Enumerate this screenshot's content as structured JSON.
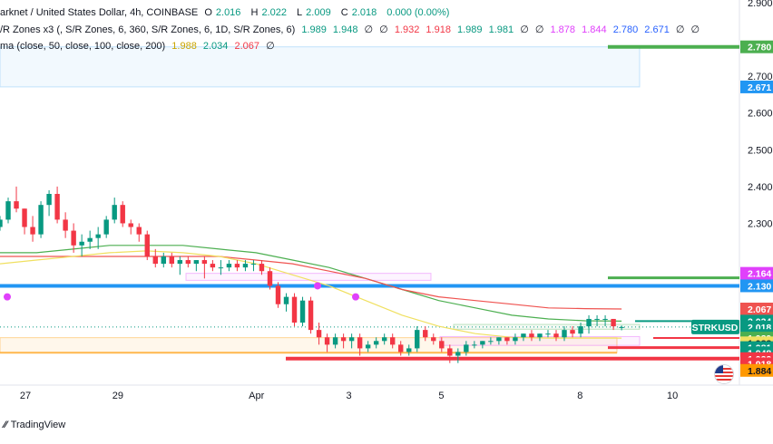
{
  "header": {
    "symbol_line": "arknet / United States Dollar, 4h, COINBASE",
    "ohlc": {
      "o_label": "O",
      "o": "2.016",
      "h_label": "H",
      "h": "2.022",
      "l_label": "L",
      "l": "2.009",
      "c_label": "C",
      "c": "2.018",
      "change": "0.000 (0.00%)"
    },
    "indicator1": {
      "name": "/R Zones x3 (, S/R Zones, 6, 360, S/R Zones, 6, 1D, S/R Zones, 6)",
      "values": [
        "1.989",
        "1.948",
        "∅",
        "∅",
        "1.932",
        "1.918",
        "1.989",
        "1.981",
        "∅",
        "∅",
        "1.878",
        "1.844",
        "2.780",
        "2.671",
        "∅",
        "∅"
      ]
    },
    "indicator2": {
      "name": "ma (close, 50, close, 100, close, 200)",
      "values": [
        "1.988",
        "2.034",
        "2.067",
        "∅"
      ]
    }
  },
  "footer": {
    "brand": "TradingView"
  },
  "colors": {
    "up": "#089981",
    "down": "#f23645",
    "blue": "#2196f3",
    "pink": "#e040fb",
    "orange": "#ff9800",
    "green_ma": "#4caf50",
    "red_ma": "#ef5350",
    "yellow_ma": "#f0e060"
  },
  "chart_data": {
    "type": "candlestick",
    "symbol": "STRKUSD",
    "interval": "4h",
    "exchange": "COINBASE",
    "ylim": [
      1.86,
      2.9
    ],
    "yticks": [
      "2.900",
      "2.700",
      "2.600",
      "2.500",
      "2.400",
      "2.300"
    ],
    "xticks": [
      {
        "label": "27",
        "day": 0
      },
      {
        "label": "29",
        "day": 2
      },
      {
        "label": "Apr",
        "day": 5
      },
      {
        "label": "3",
        "day": 7
      },
      {
        "label": "5",
        "day": 9
      },
      {
        "label": "8",
        "day": 12
      },
      {
        "label": "10",
        "day": 14
      }
    ],
    "x_start_day": -0.55,
    "x_end_day": 15.45,
    "candles": [
      [
        2.29,
        2.32,
        2.28,
        2.31
      ],
      [
        2.31,
        2.37,
        2.3,
        2.36
      ],
      [
        2.36,
        2.4,
        2.33,
        2.34
      ],
      [
        2.34,
        2.34,
        2.27,
        2.29
      ],
      [
        2.29,
        2.32,
        2.25,
        2.27
      ],
      [
        2.27,
        2.36,
        2.26,
        2.35
      ],
      [
        2.35,
        2.39,
        2.32,
        2.38
      ],
      [
        2.38,
        2.4,
        2.3,
        2.31
      ],
      [
        2.31,
        2.33,
        2.26,
        2.28
      ],
      [
        2.28,
        2.3,
        2.22,
        2.24
      ],
      [
        2.24,
        2.27,
        2.21,
        2.25
      ],
      [
        2.25,
        2.28,
        2.23,
        2.26
      ],
      [
        2.26,
        2.29,
        2.23,
        2.27
      ],
      [
        2.27,
        2.32,
        2.26,
        2.31
      ],
      [
        2.31,
        2.37,
        2.3,
        2.35
      ],
      [
        2.35,
        2.36,
        2.29,
        2.3
      ],
      [
        2.3,
        2.31,
        2.27,
        2.29
      ],
      [
        2.29,
        2.3,
        2.25,
        2.27
      ],
      [
        2.27,
        2.28,
        2.2,
        2.21
      ],
      [
        2.21,
        2.23,
        2.18,
        2.19
      ],
      [
        2.19,
        2.22,
        2.18,
        2.21
      ],
      [
        2.21,
        2.22,
        2.18,
        2.19
      ],
      [
        2.19,
        2.21,
        2.16,
        2.2
      ],
      [
        2.2,
        2.21,
        2.18,
        2.19
      ],
      [
        2.19,
        2.2,
        2.17,
        2.2
      ],
      [
        2.2,
        2.21,
        2.15,
        2.19
      ],
      [
        2.19,
        2.2,
        2.17,
        2.18
      ],
      [
        2.18,
        2.2,
        2.16,
        2.18
      ],
      [
        2.18,
        2.2,
        2.17,
        2.19
      ],
      [
        2.19,
        2.2,
        2.17,
        2.18
      ],
      [
        2.18,
        2.2,
        2.17,
        2.19
      ],
      [
        2.19,
        2.2,
        2.17,
        2.19
      ],
      [
        2.19,
        2.2,
        2.16,
        2.17
      ],
      [
        2.17,
        2.18,
        2.12,
        2.13
      ],
      [
        2.13,
        2.14,
        2.07,
        2.08
      ],
      [
        2.08,
        2.11,
        2.06,
        2.1
      ],
      [
        2.1,
        2.11,
        2.02,
        2.03
      ],
      [
        2.03,
        2.1,
        2.02,
        2.09
      ],
      [
        2.09,
        2.1,
        2.0,
        2.01
      ],
      [
        2.01,
        2.03,
        1.97,
        1.99
      ],
      [
        1.99,
        2.0,
        1.95,
        1.97
      ],
      [
        1.97,
        2.0,
        1.96,
        1.99
      ],
      [
        1.99,
        2.0,
        1.96,
        1.98
      ],
      [
        1.98,
        2.0,
        1.96,
        1.99
      ],
      [
        1.99,
        2.0,
        1.94,
        1.96
      ],
      [
        1.96,
        1.98,
        1.95,
        1.97
      ],
      [
        1.97,
        1.99,
        1.96,
        1.98
      ],
      [
        1.98,
        2.0,
        1.97,
        1.99
      ],
      [
        1.99,
        2.0,
        1.96,
        1.97
      ],
      [
        1.97,
        1.98,
        1.94,
        1.95
      ],
      [
        1.95,
        1.97,
        1.94,
        1.96
      ],
      [
        1.96,
        2.02,
        1.95,
        2.01
      ],
      [
        2.01,
        2.02,
        1.98,
        1.99
      ],
      [
        1.99,
        2.0,
        1.97,
        1.98
      ],
      [
        1.98,
        1.99,
        1.95,
        1.96
      ],
      [
        1.96,
        1.97,
        1.92,
        1.94
      ],
      [
        1.94,
        1.96,
        1.92,
        1.95
      ],
      [
        1.95,
        1.98,
        1.94,
        1.97
      ],
      [
        1.97,
        1.98,
        1.96,
        1.97
      ],
      [
        1.97,
        1.98,
        1.96,
        1.98
      ],
      [
        1.98,
        1.99,
        1.97,
        1.98
      ],
      [
        1.98,
        1.99,
        1.97,
        1.99
      ],
      [
        1.99,
        1.99,
        1.97,
        1.98
      ],
      [
        1.98,
        2.0,
        1.97,
        1.99
      ],
      [
        1.99,
        2.0,
        1.98,
        2.0
      ],
      [
        2.0,
        2.01,
        1.98,
        1.99
      ],
      [
        1.99,
        2.0,
        1.98,
        2.0
      ],
      [
        2.0,
        2.01,
        1.99,
        2.0
      ],
      [
        2.0,
        2.01,
        1.98,
        1.99
      ],
      [
        1.99,
        2.02,
        1.98,
        2.01
      ],
      [
        2.01,
        2.02,
        1.99,
        2.0
      ],
      [
        2.0,
        2.03,
        1.99,
        2.02
      ],
      [
        2.02,
        2.05,
        2.0,
        2.04
      ],
      [
        2.04,
        2.05,
        2.02,
        2.04
      ],
      [
        2.04,
        2.05,
        2.02,
        2.04
      ],
      [
        2.04,
        2.04,
        2.01,
        2.02
      ],
      [
        2.016,
        2.022,
        2.009,
        2.018
      ]
    ],
    "ma_series": [
      {
        "period": 50,
        "color": "#4caf50",
        "values": [
          2.22,
          2.22,
          2.23,
          2.24,
          2.24,
          2.24,
          2.23,
          2.22,
          2.2,
          2.18,
          2.15,
          2.12,
          2.09,
          2.07,
          2.05,
          2.04,
          2.035,
          2.034
        ]
      },
      {
        "period": 100,
        "color": "#ef5350",
        "values": [
          2.21,
          2.21,
          2.21,
          2.21,
          2.21,
          2.21,
          2.21,
          2.2,
          2.19,
          2.17,
          2.15,
          2.12,
          2.1,
          2.09,
          2.08,
          2.07,
          2.068,
          2.067
        ]
      },
      {
        "period": 200,
        "color": "#f0e060",
        "values": [
          2.19,
          2.2,
          2.21,
          2.22,
          2.225,
          2.22,
          2.21,
          2.19,
          2.16,
          2.13,
          2.09,
          2.05,
          2.02,
          2.0,
          1.99,
          1.988,
          1.988,
          1.988
        ]
      }
    ],
    "price_labels": [
      {
        "value": "2.780",
        "price": 2.78,
        "color": "#4caf50"
      },
      {
        "value": "2.671",
        "price": 2.671,
        "color": "#2196f3"
      },
      {
        "value": "2.164",
        "price": 2.164,
        "color": "#e040fb"
      },
      {
        "value": "2.130",
        "price": 2.13,
        "color": "#2196f3"
      },
      {
        "value": "2.067",
        "price": 2.067,
        "color": "#ef5350"
      },
      {
        "value": "2.034",
        "price": 2.034,
        "color": "#089981"
      },
      {
        "value": "2.018",
        "price": 2.018,
        "color": "#089981"
      },
      {
        "value": "1.989",
        "price": 1.995,
        "color": "#089981"
      },
      {
        "value": "1.989",
        "price": 1.988,
        "color": "#4caf50"
      },
      {
        "value": "1.988",
        "price": 1.975,
        "color": "#f0e060",
        "dark_text": true
      },
      {
        "value": "1.981",
        "price": 1.962,
        "color": "#089981"
      },
      {
        "value": "1.948",
        "price": 1.948,
        "color": "#089981"
      },
      {
        "value": "1.932",
        "price": 1.932,
        "color": "#f23645"
      },
      {
        "value": "1.918",
        "price": 1.918,
        "color": "#f23645"
      },
      {
        "value": "1.884",
        "price": 1.9,
        "color": "#ff9800",
        "dark_text": true
      }
    ],
    "symbol_tag": "STRKUSD",
    "last_price": 2.018
  }
}
